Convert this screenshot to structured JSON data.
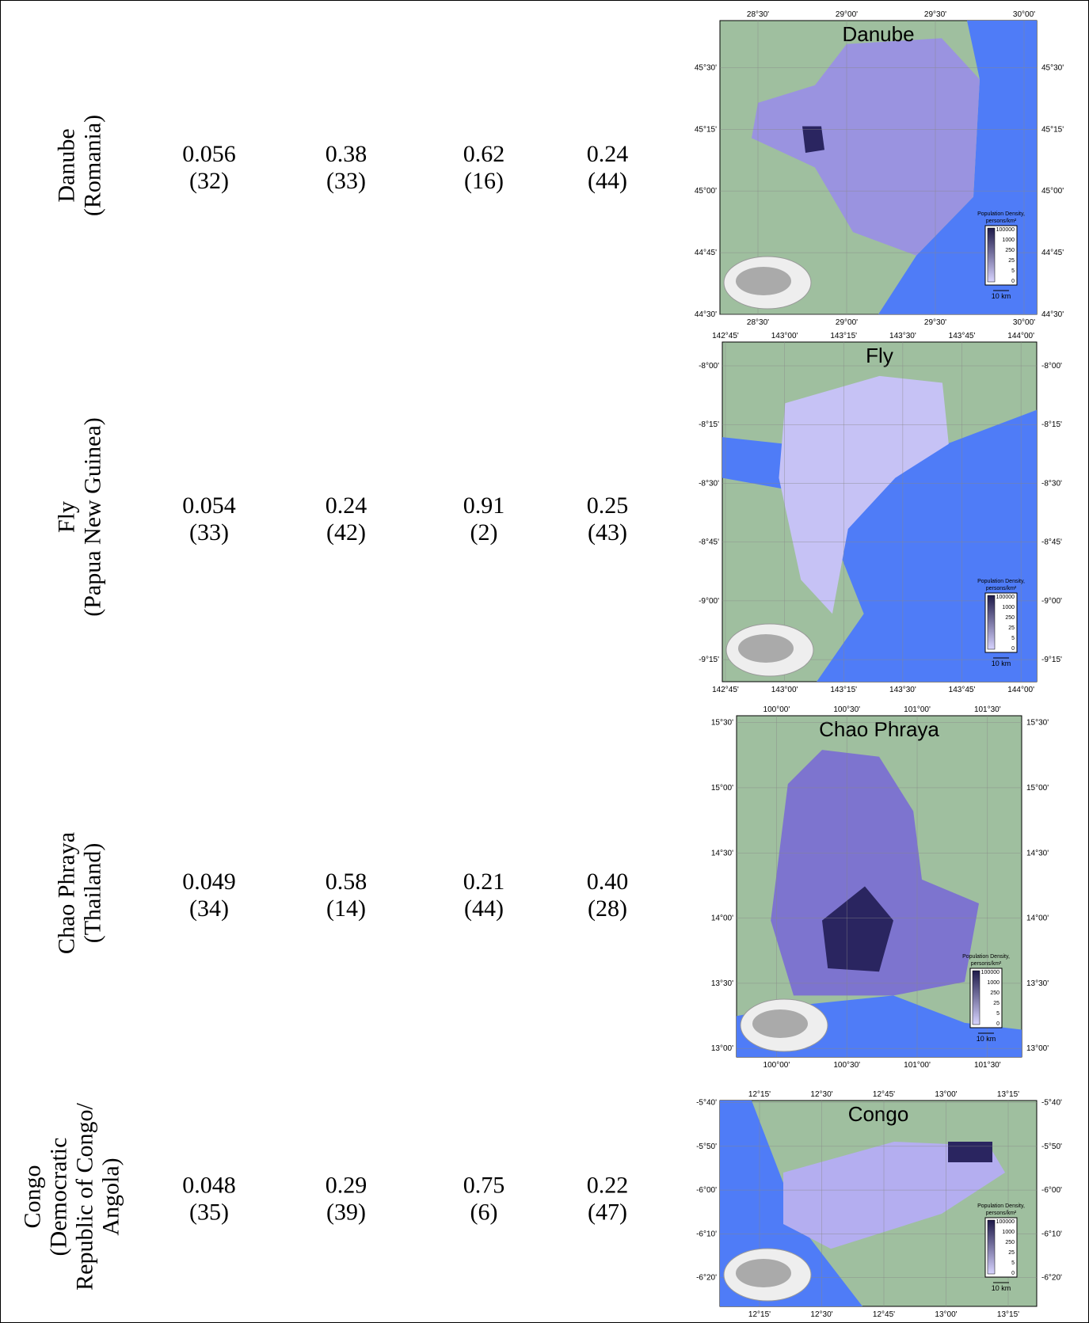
{
  "rows": [
    {
      "name": [
        "Danube",
        "(Romania)"
      ],
      "cells": [
        {
          "value": "0.056",
          "rank": "(32)"
        },
        {
          "value": "0.38",
          "rank": "(33)"
        },
        {
          "value": "0.62",
          "rank": "(16)"
        },
        {
          "value": "0.24",
          "rank": "(44)"
        }
      ]
    },
    {
      "name": [
        "Fly",
        "(Papua New Guinea)"
      ],
      "cells": [
        {
          "value": "0.054",
          "rank": "(33)"
        },
        {
          "value": "0.24",
          "rank": "(42)"
        },
        {
          "value": "0.91",
          "rank": "(2)"
        },
        {
          "value": "0.25",
          "rank": "(43)"
        }
      ]
    },
    {
      "name": [
        "Chao Phraya",
        "(Thailand)"
      ],
      "cells": [
        {
          "value": "0.049",
          "rank": "(34)"
        },
        {
          "value": "0.58",
          "rank": "(14)"
        },
        {
          "value": "0.21",
          "rank": "(44)"
        },
        {
          "value": "0.40",
          "rank": "(28)"
        }
      ]
    },
    {
      "name": [
        "Congo",
        "(Democratic",
        "Republic of Congo/",
        "Angola)"
      ],
      "cells": [
        {
          "value": "0.048",
          "rank": "(35)"
        },
        {
          "value": "0.29",
          "rank": "(39)"
        },
        {
          "value": "0.75",
          "rank": "(6)"
        },
        {
          "value": "0.22",
          "rank": "(47)"
        }
      ]
    }
  ],
  "maps": [
    {
      "title": "Danube",
      "lon": [
        "28°30'",
        "29°00'",
        "29°30'",
        "30°00'"
      ],
      "lat": [
        "45°30'",
        "45°15'",
        "45°00'",
        "44°45'",
        "44°30'"
      ]
    },
    {
      "title": "Fly",
      "lon": [
        "142°45'",
        "143°00'",
        "143°15'",
        "143°30'",
        "143°45'",
        "144°00'"
      ],
      "lat": [
        "-8°00'",
        "-8°15'",
        "-8°30'",
        "-8°45'",
        "-9°00'",
        "-9°15'"
      ]
    },
    {
      "title": "Chao Phraya",
      "lon": [
        "100°00'",
        "100°30'",
        "101°00'",
        "101°30'"
      ],
      "lat": [
        "15°30'",
        "15°00'",
        "14°30'",
        "14°00'",
        "13°30'",
        "13°00'"
      ]
    },
    {
      "title": "Congo",
      "lon": [
        "12°15'",
        "12°30'",
        "12°45'",
        "13°00'",
        "13°15'"
      ],
      "lat": [
        "-5°40'",
        "-5°50'",
        "-6°00'",
        "-6°10'",
        "-6°20'"
      ]
    }
  ],
  "legend": {
    "title": [
      "Population Density,",
      "persons/km²"
    ],
    "ticks": [
      "100000",
      "1000",
      "250",
      "25",
      "5",
      "0"
    ],
    "scale": "10 km"
  }
}
